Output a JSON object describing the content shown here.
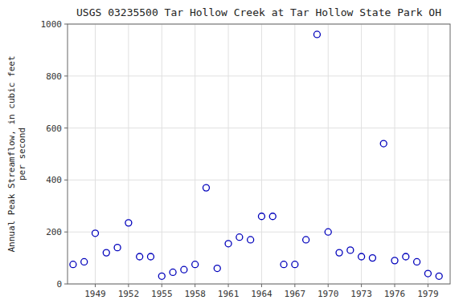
{
  "chart_data": {
    "type": "scatter",
    "title": "USGS 03235500 Tar Hollow Creek at Tar Hollow State Park OH",
    "ylabel": "Annual Peak Streamflow, in cubic feet\nper second",
    "x": [
      1947,
      1948,
      1949,
      1950,
      1951,
      1952,
      1953,
      1954,
      1955,
      1956,
      1957,
      1958,
      1959,
      1960,
      1961,
      1962,
      1963,
      1964,
      1965,
      1966,
      1967,
      1968,
      1969,
      1970,
      1971,
      1972,
      1973,
      1974,
      1975,
      1976,
      1977,
      1978,
      1979,
      1980
    ],
    "values": [
      75,
      85,
      195,
      120,
      140,
      235,
      105,
      105,
      30,
      45,
      55,
      75,
      370,
      60,
      155,
      180,
      170,
      260,
      260,
      75,
      75,
      170,
      960,
      200,
      120,
      130,
      105,
      100,
      540,
      90,
      105,
      85,
      40,
      30
    ],
    "xlim": [
      1946.5,
      1981
    ],
    "ylim": [
      0,
      1000
    ],
    "xticks": [
      1949,
      1952,
      1955,
      1958,
      1961,
      1964,
      1967,
      1970,
      1973,
      1976,
      1979
    ],
    "yticks": [
      0,
      200,
      400,
      600,
      800,
      1000
    ],
    "color": "#0000bb",
    "marker": "open-circle",
    "grid": true
  }
}
